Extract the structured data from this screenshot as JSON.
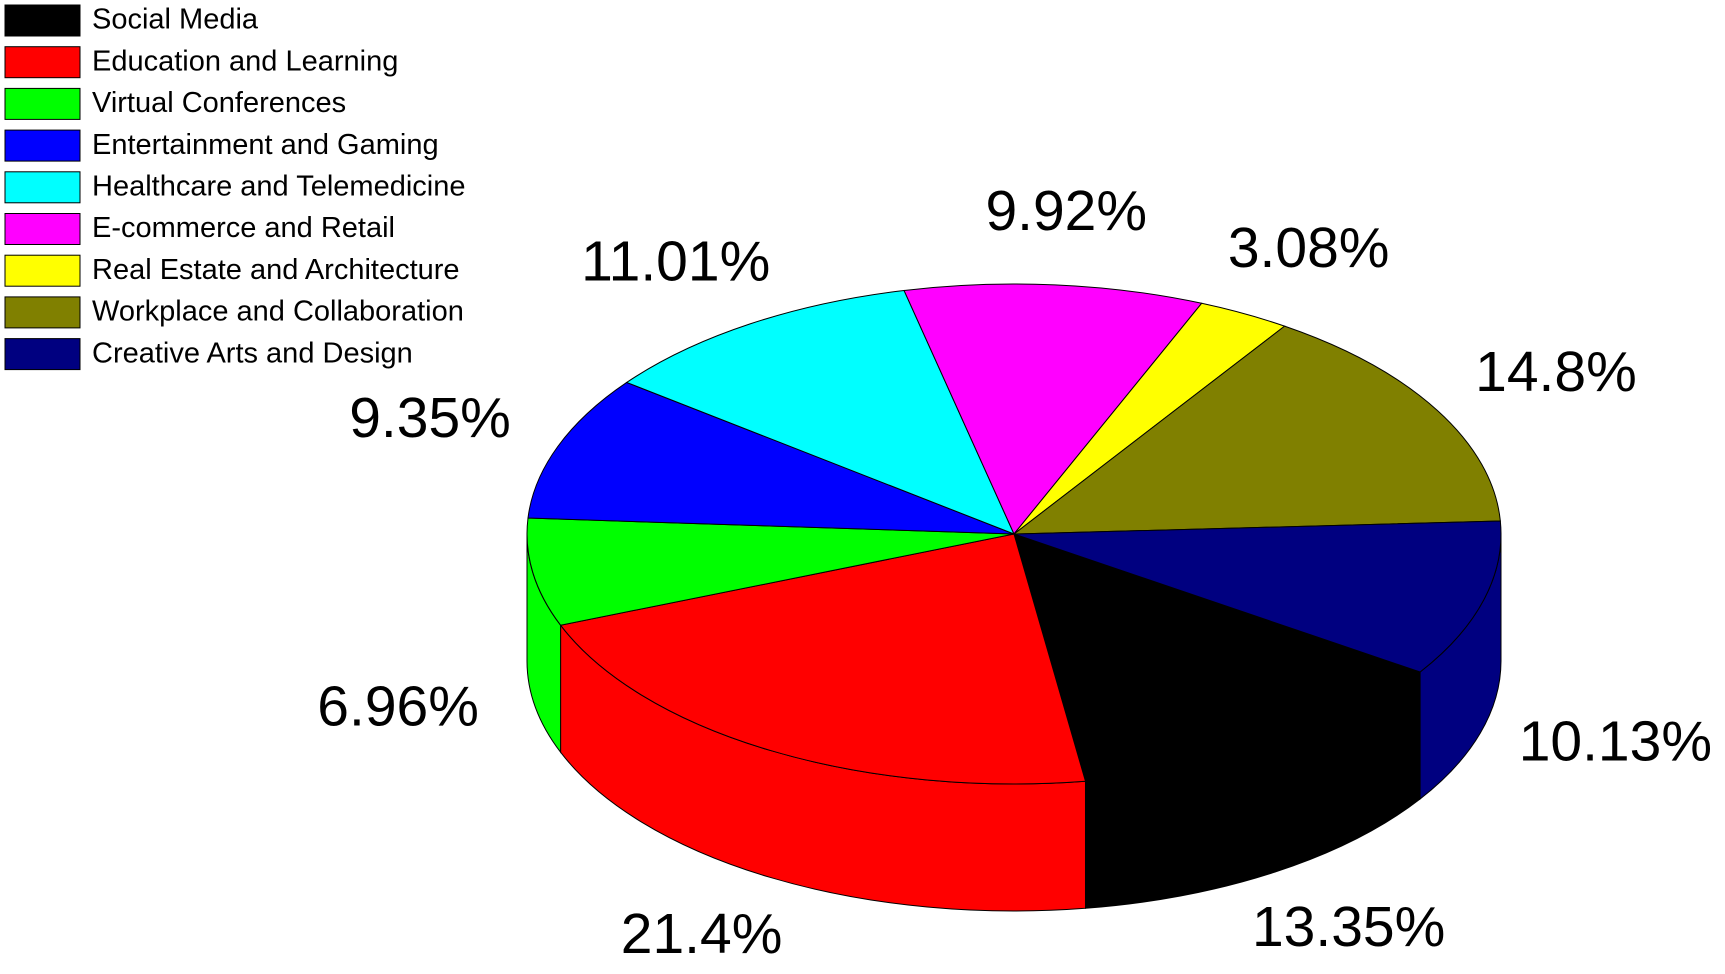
{
  "chart_data": {
    "type": "pie",
    "categories": [
      "Social Media",
      "Education and Learning",
      "Virtual Conferences",
      "Entertainment and Gaming",
      "Healthcare and Telemedicine",
      "E-commerce and Retail",
      "Real Estate and Architecture",
      "Workplace and Collaboration",
      "Creative Arts and Design"
    ],
    "values": [
      13.35,
      21.4,
      6.96,
      9.35,
      11.01,
      9.92,
      3.08,
      14.8,
      10.13
    ],
    "value_labels": [
      "13.35%",
      "21.4%",
      "6.96%",
      "9.35%",
      "11.01%",
      "9.92%",
      "3.08%",
      "14.8%",
      "10.13%"
    ],
    "colors": [
      "#000000",
      "#ff0000",
      "#00ff00",
      "#0000ff",
      "#00ffff",
      "#ff00ff",
      "#ffff00",
      "#808000",
      "#000080"
    ],
    "legend": "top-left"
  }
}
